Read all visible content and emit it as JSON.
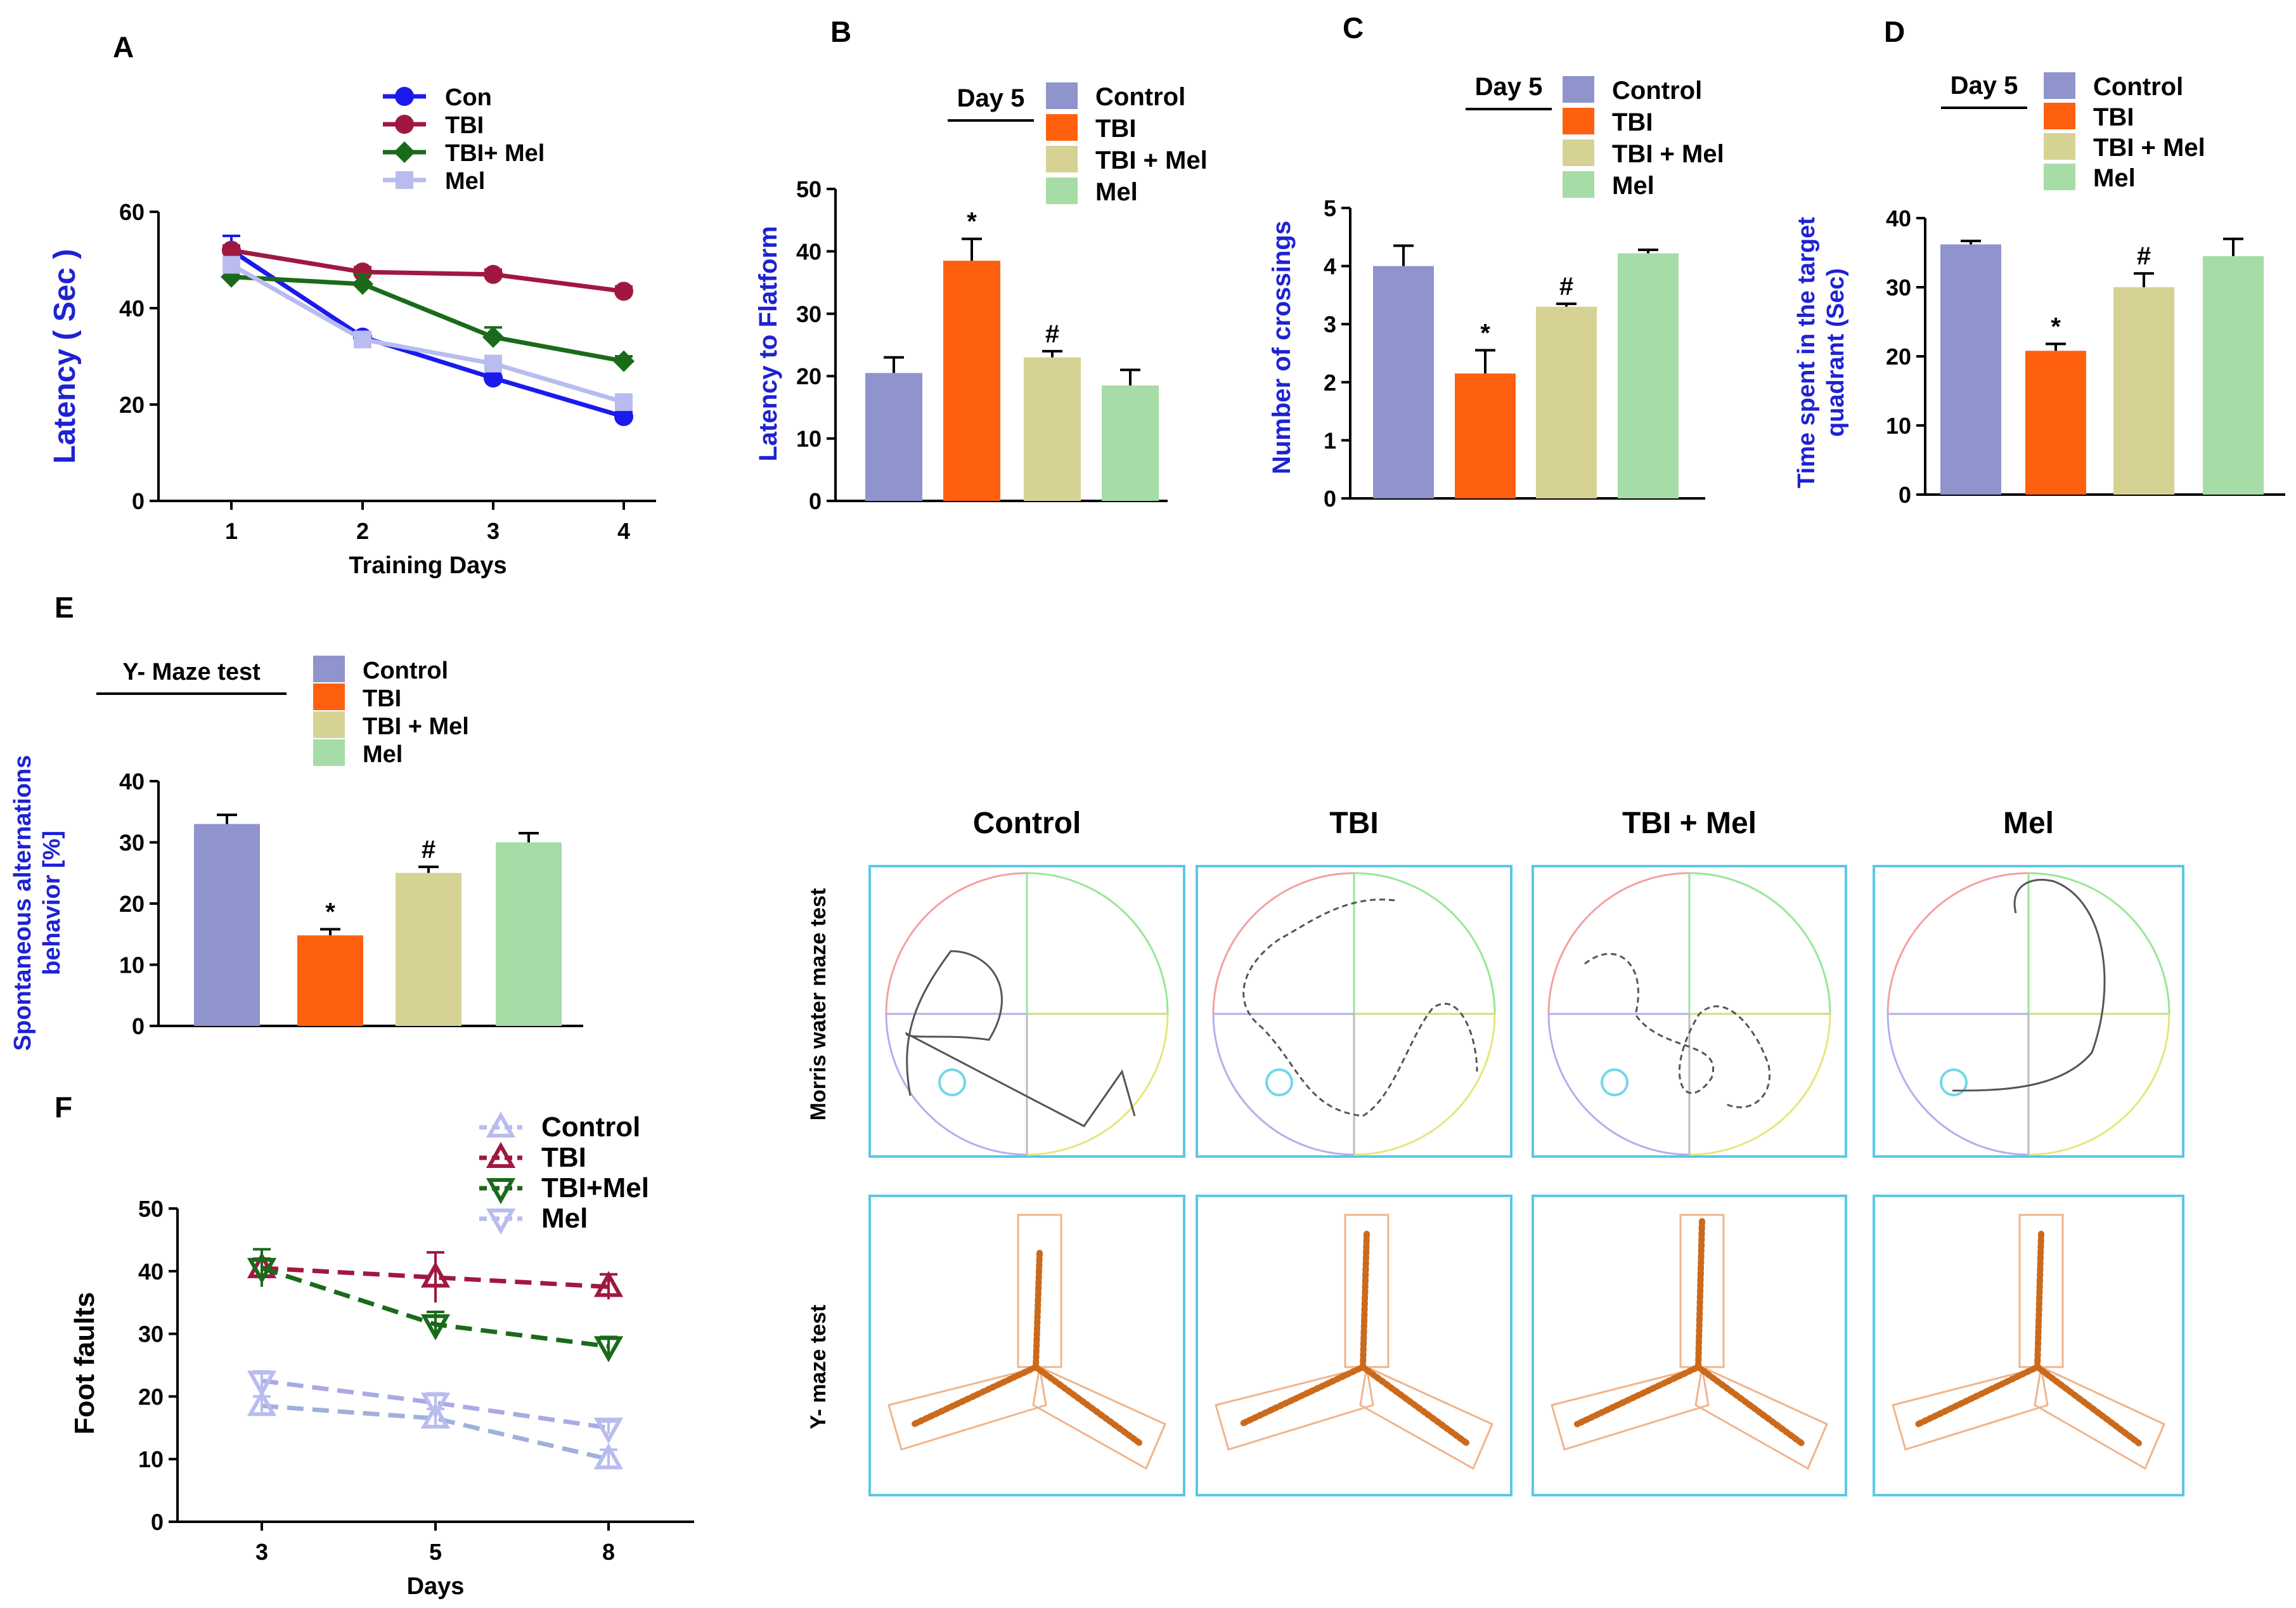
{
  "colors": {
    "control": "#8f94cc",
    "tbi": "#ff6010",
    "tbimel": "#d6d294",
    "mel": "#a6dca6",
    "con_line": "#1a1aee",
    "tbi_line": "#a01840",
    "tbimel_line": "#1a6a1a",
    "mel_line": "#b8bcee",
    "axis_blue": "#1e22d2",
    "track": "#cc6a1c",
    "frame": "#5ac8e6"
  },
  "chart_data": [
    {
      "id": "A",
      "type": "line",
      "panel_label": "A",
      "xlabel": "Training Days",
      "ylabel": "Latency ( Sec )",
      "x": [
        1,
        2,
        3,
        4
      ],
      "ylim": [
        0,
        60
      ],
      "yticks": [
        0,
        20,
        40,
        60
      ],
      "series": [
        {
          "name": "Con",
          "values": [
            52,
            34,
            25.5,
            17.5
          ],
          "errors": [
            3,
            1,
            1.5,
            1
          ]
        },
        {
          "name": "TBI",
          "values": [
            52,
            47.5,
            47,
            43.5
          ],
          "errors": [
            1,
            1,
            1,
            1
          ]
        },
        {
          "name": "TBI+ Mel",
          "values": [
            46.5,
            45,
            34,
            29
          ],
          "errors": [
            1,
            2,
            2,
            1
          ]
        },
        {
          "name": "Mel",
          "values": [
            49,
            33.5,
            28.5,
            20.5
          ],
          "errors": [
            1,
            1,
            1,
            1
          ]
        }
      ]
    },
    {
      "id": "B",
      "type": "bar",
      "panel_label": "B",
      "group_title": "Day 5",
      "ylabel": "Latency to Flatform",
      "ylim": [
        0,
        50
      ],
      "yticks": [
        0,
        10,
        20,
        30,
        40,
        50
      ],
      "categories": [
        "Control",
        "TBI",
        "TBI + Mel",
        "Mel"
      ],
      "values": [
        20.5,
        38.5,
        23,
        18.5
      ],
      "errors": [
        2.5,
        3.5,
        1,
        2.5
      ],
      "annotations": [
        "",
        "*",
        "#",
        ""
      ]
    },
    {
      "id": "C",
      "type": "bar",
      "panel_label": "C",
      "group_title": "Day 5",
      "ylabel": "Number of crossings",
      "ylim": [
        0,
        5
      ],
      "yticks": [
        0,
        1,
        2,
        3,
        4,
        5
      ],
      "categories": [
        "Control",
        "TBI",
        "TBI + Mel",
        "Mel"
      ],
      "values": [
        4.0,
        2.15,
        3.3,
        4.22
      ],
      "errors": [
        0.35,
        0.4,
        0.05,
        0.06
      ],
      "annotations": [
        "",
        "*",
        "#",
        ""
      ]
    },
    {
      "id": "D",
      "type": "bar",
      "panel_label": "D",
      "group_title": "Day 5",
      "ylabel": "Time spent in the target quadrant (Sec)",
      "ylabel_lines": [
        "Time spent in the target",
        "quadrant (Sec)"
      ],
      "ylim": [
        0,
        40
      ],
      "yticks": [
        0,
        10,
        20,
        30,
        40
      ],
      "categories": [
        "Control",
        "TBI",
        "TBI + Mel",
        "Mel"
      ],
      "values": [
        36.2,
        20.8,
        30,
        34.5
      ],
      "errors": [
        0.5,
        1,
        2,
        2.5
      ],
      "annotations": [
        "",
        "*",
        "#",
        ""
      ]
    },
    {
      "id": "E",
      "type": "bar",
      "panel_label": "E",
      "group_title": "Y- Maze test",
      "ylabel": "Spontaneous alternations behavior [%]",
      "ylabel_lines": [
        "Spontaneous alternations",
        "behavior [%]"
      ],
      "ylim": [
        0,
        40
      ],
      "yticks": [
        0,
        10,
        20,
        30,
        40
      ],
      "categories": [
        "Control",
        "TBI",
        "TBI + Mel",
        "Mel"
      ],
      "values": [
        33,
        14.8,
        25,
        30
      ],
      "errors": [
        1.5,
        1,
        1,
        1.5
      ],
      "annotations": [
        "",
        "*",
        "#",
        ""
      ]
    },
    {
      "id": "F",
      "type": "line",
      "panel_label": "F",
      "xlabel": "Days",
      "ylabel": "Foot faults",
      "x": [
        3,
        5,
        8
      ],
      "ylim": [
        0,
        50
      ],
      "yticks": [
        0,
        10,
        20,
        30,
        40,
        50
      ],
      "series": [
        {
          "name": "Control",
          "values": [
            18.5,
            16.5,
            10
          ],
          "errors": [
            1.5,
            1.5,
            1.5
          ]
        },
        {
          "name": "TBI",
          "values": [
            40.5,
            39,
            37.5
          ],
          "errors": [
            1.5,
            4,
            2
          ]
        },
        {
          "name": "TBI+Mel",
          "values": [
            40.5,
            31.5,
            28
          ],
          "errors": [
            3,
            2,
            1.5
          ]
        },
        {
          "name": "Mel",
          "values": [
            22.5,
            19,
            15
          ],
          "errors": [
            1.5,
            1.5,
            1
          ]
        }
      ]
    }
  ],
  "tracks": {
    "columns": [
      "Control",
      "TBI",
      "TBI + Mel",
      "Mel"
    ],
    "rows": [
      "Morris water maze test",
      "Y- maze test"
    ]
  }
}
